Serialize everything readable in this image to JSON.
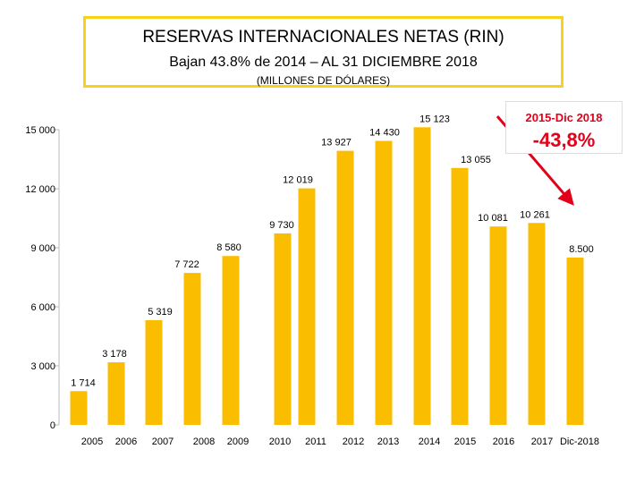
{
  "chart_data": {
    "type": "bar",
    "title": "RESERVAS INTERNACIONALES NETAS (RIN)",
    "subtitle": "Bajan 43.8% de 2014 –  AL 31 DICIEMBRE 2018",
    "unit": "(MILLONES DE DÓLARES)",
    "categories": [
      "2005",
      "2006",
      "2007",
      "2008",
      "2009",
      "2010",
      "2011",
      "2012",
      "2013",
      "2014",
      "2015",
      "2016",
      "2017",
      "Dic-2018"
    ],
    "values": [
      1714,
      3178,
      5319,
      7722,
      8580,
      9730,
      12019,
      13927,
      14430,
      15123,
      13055,
      10081,
      10261,
      8500
    ],
    "value_labels": [
      "1 714",
      "3 178",
      "5 319",
      "7 722",
      "8 580",
      "9 730",
      "12 019",
      "13 927",
      "14 430",
      "15 123",
      "13 055",
      "10 081",
      "10 261",
      "8.500"
    ],
    "ylim": [
      0,
      15000
    ],
    "yticks": [
      0,
      3000,
      6000,
      9000,
      12000,
      15000
    ],
    "ytick_labels": [
      "0",
      "3 000",
      "6 000",
      "9 000",
      "12 000",
      "15 000"
    ],
    "xlabel": "",
    "ylabel": "",
    "legend": "none",
    "bar_color": "#fbbd00",
    "annotation": {
      "period": "2015-Dic 2018",
      "change": "-43,8%",
      "color": "#e3001b"
    }
  }
}
